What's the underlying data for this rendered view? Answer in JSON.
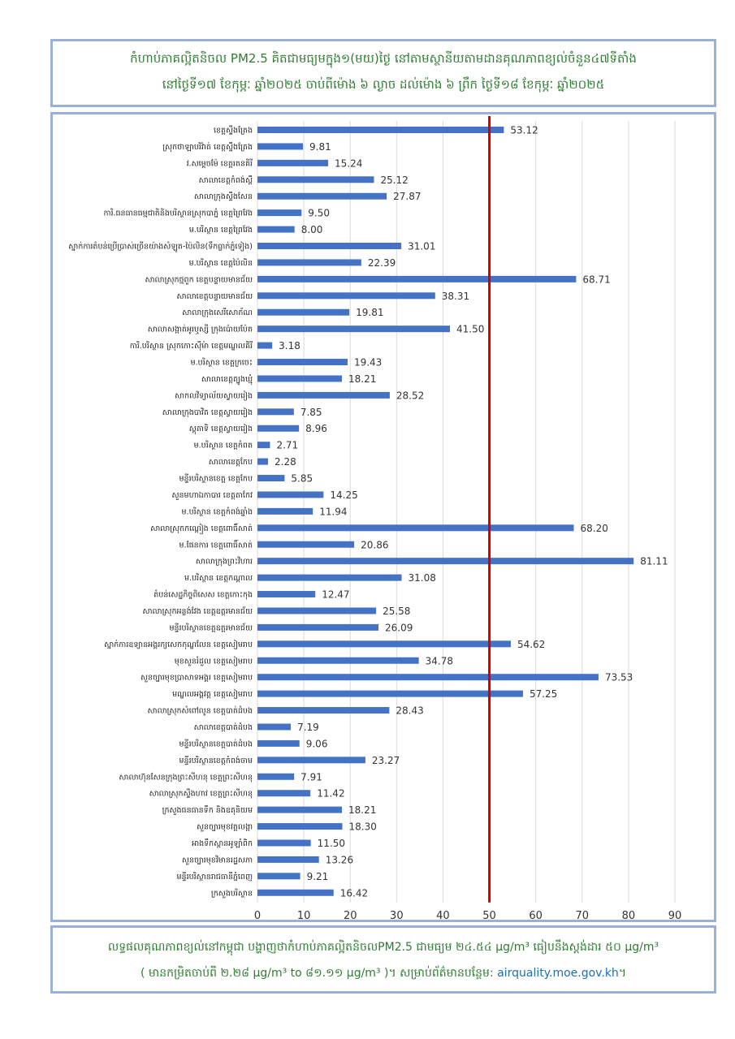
{
  "header": {
    "line1": "កំហាប់ភាគល្អិតនិចល PM2.5 គិតជាមធ្យមក្នុង១(មយ)ថ្ងៃ នៅតាមស្ថានីយតាមដានគុណភាពខ្យល់ចំនួន៤៧ទីតាំង",
    "line2": "នៅថ្ងៃទី១៧ ខែកុម្ភៈ ឆ្នាំ២០២៥ ចាប់ពីម៉ោង ៦ ល្ងាច ដល់ម៉ោង ៦ ព្រឹក ថ្ងៃទី១៨ ខែកុម្ភៈ ឆ្នាំ២០២៥"
  },
  "footer": {
    "line1": "លទ្ធផលគុណភាពខ្យល់នៅកម្ពុជា បង្ហាញថាកំហាប់ភាគល្អិតនិចលPM2.5 ជាមធ្យម ២៤.៥៤ μg/m³ ធៀបនឹងស្តង់ដារ ៥០ μg/m³",
    "line2_text": "( មានកម្រិតចាប់ពី ២.២៨ μg/m³ to ៨១.១១ μg/m³ )។ សម្រាប់ព័ត៌មានបន្ថែម: ",
    "line2_link": "airquality.moe.gov.kh",
    "line2_end": "។"
  },
  "colors": {
    "bar": "#4472c4",
    "threshold": "#d00000",
    "grid": "#d9d9d9",
    "frame": "#9bb0d6",
    "title_text": "#2e7d32"
  },
  "chart_data": {
    "type": "bar",
    "orientation": "horizontal",
    "xlim": [
      0,
      90
    ],
    "xticks": [
      0,
      10,
      20,
      30,
      40,
      50,
      60,
      70,
      80,
      90
    ],
    "threshold": 50,
    "grid": true,
    "value_labels": [
      "53.12",
      "9.81",
      "15.24",
      "25.12",
      "27.87",
      "9.50",
      "8.00",
      "31.01",
      "22.39",
      "68.71",
      "38.31",
      "19.81",
      "41.50",
      "3.18",
      "19.43",
      "18.21",
      "28.52",
      "7.85",
      "8.96",
      "2.71",
      "2.28",
      "5.85",
      "14.25",
      "11.94",
      "68.20",
      "20.86",
      "81.11",
      "31.08",
      "12.47",
      "25.58",
      "26.09",
      "54.62",
      "34.78",
      "73.53",
      "57.25",
      "28.43",
      "7.19",
      "9.06",
      "23.27",
      "7.91",
      "11.42",
      "18.21",
      "18.30",
      "11.50",
      "13.26",
      "9.21",
      "16.42"
    ],
    "values": [
      53.12,
      9.81,
      15.24,
      25.12,
      27.87,
      9.5,
      8.0,
      31.01,
      22.39,
      68.71,
      38.31,
      19.81,
      41.5,
      3.18,
      19.43,
      18.21,
      28.52,
      7.85,
      8.96,
      2.71,
      2.28,
      5.85,
      14.25,
      11.94,
      68.2,
      20.86,
      81.11,
      31.08,
      12.47,
      25.58,
      26.09,
      54.62,
      34.78,
      73.53,
      57.25,
      28.43,
      7.19,
      9.06,
      23.27,
      7.91,
      11.42,
      18.21,
      18.3,
      11.5,
      13.26,
      9.21,
      16.42
    ],
    "categories": [
      "ខេត្តស្ទឹងត្រែង",
      "ស្រុកថាឡាបរិវ៉ាត់ ខេត្តស្ទឹងត្រែង",
      "វ.សម្ដេចម៉ែ ខេត្តរតនគិរី",
      "សាលាខេត្តកំពង់ស្ពឺ",
      "សាលាក្រុងស្ទឹងសែន",
      "ការិ.ធនធានធម្មជាតិនិងបរិស្ថានស្រុកបាភ្នំ ខេត្តព្រៃវែង",
      "ម.បរិស្ថាន ខេត្តព្រៃវែង",
      "ស្នាក់ការតំបន់ប្រើប្រាស់ច្រើនយ៉ាងសំឡូត-ប៉ៃលិន(ទឹកធ្លាក់ភ្នំទៀង)",
      "ម.បរិស្ថាន ខេត្តប៉ៃលិន",
      "សាលាស្រុកថ្មពួក ខេត្តបន្ទាយមានជ័យ",
      "សាលាខេត្តបន្ទាយមានជ័យ",
      "សាលាក្រុងសេរីសោភ័ណ",
      "សាលាសង្កាត់អូរឬស្សី ក្រុងប៉ោយប៉ែត",
      "ការិ.បរិស្ថាន ស្រុកកោះស៊ីម៉ា ខេត្តមណ្ឌលគិរី",
      "ម.បរិស្ថាន ខេត្តក្រចេះ",
      "សាលាខេត្តត្បូងឃ្មុំ",
      "សាកលវិទ្យាល័យស្វាយរៀង",
      "សាលាក្រុងបាវិត ខេត្តស្វាយរៀង",
      "ស្តុតាទិ ខេត្តស្វាយរៀង",
      "ម.បរិស្ថាន ខេត្តកំពត",
      "សាលាខេត្តកែប",
      "មន្ទីរបរិស្ថានខេត្ត ខេត្តកែប",
      "សួនមហាឯកាបារ ខេត្តតាកែវ",
      "ម.បរិស្ថាន ខេត្តកំពង់ឆ្នាំង",
      "សាលាស្រុកកណ្ដៀង ខេត្តពោធិ៍សាត់",
      "ម.ផែនការ ខេត្តពោធិ៍សាត់",
      "សាលាក្រុងព្រះវិហារ",
      "ម.បរិស្ថាន ខេត្តកណ្ដាល",
      "តំបន់សេដ្ឋកិច្ចពិសេស ខេត្តកោះកុង",
      "សាលាស្រុកអន្លង់វែង ខេត្តឧត្តរមានជ័យ",
      "មន្ទីរបរិស្ថានខេត្តឧត្តរមានជ័យ",
      "ស្នាក់ការឧទ្យានអង្គរក្យសេកកុណ្ឌលែន ខេត្តសៀមរាប",
      "មុខសួនរំដួល ខេត្តសៀមរាប",
      "សួនច្បារមុខប្រាសាទអង្គរ ខេត្តសៀមរាប",
      "មណ្ឌលអង្គវត្ត ខេត្តសៀមរាប",
      "សាលាស្រុកសំពៅលូន ខេត្តបាត់ដំបង",
      "សាលាខេត្តបាត់ដំបង",
      "មន្ទីរបរិស្ថានខេត្តបាត់ដំបង",
      "មន្ទីរបរិស្ថានខេត្តកំពង់ចាម",
      "សាលាហ៊ុនសែនក្រុងព្រះសីហនុ ខេត្តព្រះសីហនុ",
      "សាលាស្រុកស្ទឹងហាវ ខេត្តព្រះសីហនុ",
      "ក្រសួងធនធានទឹក និងឧតុនិយម",
      "សួនច្បារមុខវត្តលង្កា",
      "អាងទឹកស្ពានអូឡាំពិក",
      "សួនច្បារមុខវិមានរដ្ឋសភា",
      "មន្ទីរបរិស្ថានរាជធានីភ្នំពេញ",
      "ក្រសួងបរិស្ថាន"
    ]
  }
}
